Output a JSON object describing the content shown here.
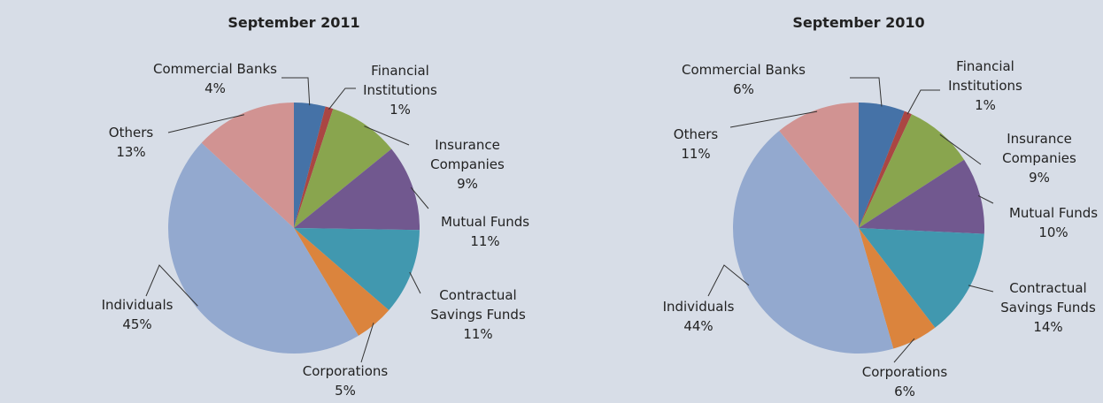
{
  "chart_data": [
    {
      "type": "pie",
      "title": "September 2011",
      "categories": [
        "Commercial Banks",
        "Financial Institutions",
        "Insurance Companies",
        "Mutual Funds",
        "Contractual Savings Funds",
        "Corporations",
        "Individuals",
        "Others"
      ],
      "values": [
        4,
        1,
        9,
        11,
        11,
        5,
        45,
        13
      ],
      "value_labels": [
        "4%",
        "1%",
        "9%",
        "11%",
        "11%",
        "5%",
        "45%",
        "13%"
      ],
      "colors": [
        "#4572a7",
        "#aa4643",
        "#89a54e",
        "#71588f",
        "#4198af",
        "#db843d",
        "#93a9cf",
        "#d19392"
      ]
    },
    {
      "type": "pie",
      "title": "September 2010",
      "categories": [
        "Commercial Banks",
        "Financial Institutions",
        "Insurance Companies",
        "Mutual Funds",
        "Contractual Savings Funds",
        "Corporations",
        "Individuals",
        "Others"
      ],
      "values": [
        6,
        1,
        9,
        10,
        14,
        6,
        44,
        11
      ],
      "value_labels": [
        "6%",
        "1%",
        "9%",
        "10%",
        "14%",
        "6%",
        "44%",
        "11%"
      ],
      "colors": [
        "#4572a7",
        "#aa4643",
        "#89a54e",
        "#71588f",
        "#4198af",
        "#db843d",
        "#93a9cf",
        "#d19392"
      ]
    }
  ]
}
